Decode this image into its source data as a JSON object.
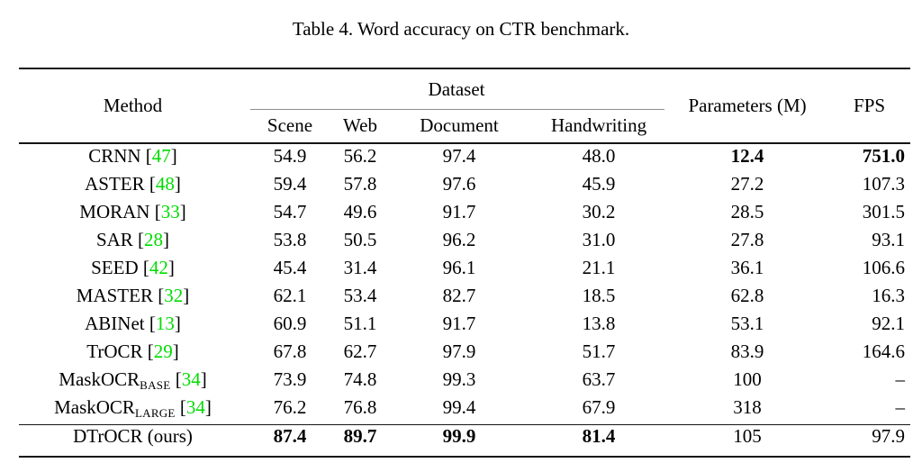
{
  "title": "Table 4. Word accuracy on CTR benchmark.",
  "colors": {
    "citation_green": "#00dc00",
    "text": "#000000",
    "background": "#ffffff",
    "rule": "#151515"
  },
  "chart_data": {
    "type": "table",
    "title": "Table 4. Word accuracy on CTR benchmark.",
    "columns": [
      "Method",
      "Scene",
      "Web",
      "Document",
      "Handwriting",
      "Parameters (M)",
      "FPS"
    ],
    "rows": [
      [
        "CRNN [47]",
        "54.9",
        "56.2",
        "97.4",
        "48.0",
        "12.4",
        "751.0"
      ],
      [
        "ASTER [48]",
        "59.4",
        "57.8",
        "97.6",
        "45.9",
        "27.2",
        "107.3"
      ],
      [
        "MORAN [33]",
        "54.7",
        "49.6",
        "91.7",
        "30.2",
        "28.5",
        "301.5"
      ],
      [
        "SAR [28]",
        "53.8",
        "50.5",
        "96.2",
        "31.0",
        "27.8",
        "93.1"
      ],
      [
        "SEED [42]",
        "45.4",
        "31.4",
        "96.1",
        "21.1",
        "36.1",
        "106.6"
      ],
      [
        "MASTER [32]",
        "62.1",
        "53.4",
        "82.7",
        "18.5",
        "62.8",
        "16.3"
      ],
      [
        "ABINet [13]",
        "60.9",
        "51.1",
        "91.7",
        "13.8",
        "53.1",
        "92.1"
      ],
      [
        "TrOCR [29]",
        "67.8",
        "62.7",
        "97.9",
        "51.7",
        "83.9",
        "164.6"
      ],
      [
        "MaskOCR_BASE [34]",
        "73.9",
        "74.8",
        "99.3",
        "63.7",
        "100",
        "–"
      ],
      [
        "MaskOCR_LARGE [34]",
        "76.2",
        "76.8",
        "99.4",
        "67.9",
        "318",
        "–"
      ],
      [
        "DTrOCR (ours)",
        "87.4",
        "89.7",
        "99.9",
        "81.4",
        "105",
        "97.9"
      ]
    ]
  },
  "table": {
    "header": {
      "method": "Method",
      "dataset_group": "Dataset",
      "dataset_columns": [
        "Scene",
        "Web",
        "Document",
        "Handwriting"
      ],
      "parameters": "Parameters (M)",
      "fps": "FPS"
    },
    "bracket_open": "[",
    "bracket_close": "]",
    "rows": [
      {
        "method": "CRNN",
        "cite": "47",
        "values": [
          "54.9",
          "56.2",
          "97.4",
          "48.0",
          "12.4",
          "751.0"
        ],
        "bold": [
          false,
          false,
          false,
          false,
          true,
          true
        ]
      },
      {
        "method": "ASTER",
        "cite": "48",
        "values": [
          "59.4",
          "57.8",
          "97.6",
          "45.9",
          "27.2",
          "107.3"
        ],
        "bold": [
          false,
          false,
          false,
          false,
          false,
          false
        ]
      },
      {
        "method": "MORAN",
        "cite": "33",
        "values": [
          "54.7",
          "49.6",
          "91.7",
          "30.2",
          "28.5",
          "301.5"
        ],
        "bold": [
          false,
          false,
          false,
          false,
          false,
          false
        ]
      },
      {
        "method": "SAR",
        "cite": "28",
        "values": [
          "53.8",
          "50.5",
          "96.2",
          "31.0",
          "27.8",
          "93.1"
        ],
        "bold": [
          false,
          false,
          false,
          false,
          false,
          false
        ]
      },
      {
        "method": "SEED",
        "cite": "42",
        "values": [
          "45.4",
          "31.4",
          "96.1",
          "21.1",
          "36.1",
          "106.6"
        ],
        "bold": [
          false,
          false,
          false,
          false,
          false,
          false
        ]
      },
      {
        "method": "MASTER",
        "cite": "32",
        "values": [
          "62.1",
          "53.4",
          "82.7",
          "18.5",
          "62.8",
          "16.3"
        ],
        "bold": [
          false,
          false,
          false,
          false,
          false,
          false
        ]
      },
      {
        "method": "ABINet",
        "cite": "13",
        "values": [
          "60.9",
          "51.1",
          "91.7",
          "13.8",
          "53.1",
          "92.1"
        ],
        "bold": [
          false,
          false,
          false,
          false,
          false,
          false
        ]
      },
      {
        "method": "TrOCR",
        "cite": "29",
        "values": [
          "67.8",
          "62.7",
          "97.9",
          "51.7",
          "83.9",
          "164.6"
        ],
        "bold": [
          false,
          false,
          false,
          false,
          false,
          false
        ]
      },
      {
        "method": "MaskOCR",
        "subscript": "BASE",
        "cite": "34",
        "values": [
          "73.9",
          "74.8",
          "99.3",
          "63.7",
          "100",
          "–"
        ],
        "bold": [
          false,
          false,
          false,
          false,
          false,
          false
        ]
      },
      {
        "method": "MaskOCR",
        "subscript": "LARGE",
        "cite": "34",
        "values": [
          "76.2",
          "76.8",
          "99.4",
          "67.9",
          "318",
          "–"
        ],
        "bold": [
          false,
          false,
          false,
          false,
          false,
          false
        ]
      },
      {
        "method": "DTrOCR (ours)",
        "values": [
          "87.4",
          "89.7",
          "99.9",
          "81.4",
          "105",
          "97.9"
        ],
        "bold": [
          true,
          true,
          true,
          true,
          false,
          false
        ],
        "separator_above": true
      }
    ]
  }
}
